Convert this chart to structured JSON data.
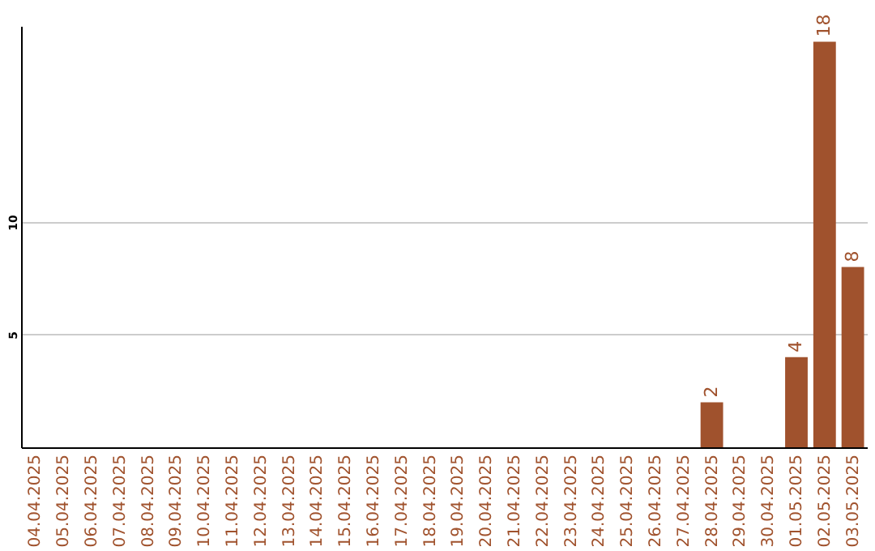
{
  "chart_data": {
    "type": "bar",
    "categories": [
      "04.04.2025",
      "05.04.2025",
      "06.04.2025",
      "07.04.2025",
      "08.04.2025",
      "09.04.2025",
      "10.04.2025",
      "11.04.2025",
      "12.04.2025",
      "13.04.2025",
      "14.04.2025",
      "15.04.2025",
      "16.04.2025",
      "17.04.2025",
      "18.04.2025",
      "19.04.2025",
      "20.04.2025",
      "21.04.2025",
      "22.04.2025",
      "23.04.2025",
      "24.04.2025",
      "25.04.2025",
      "26.04.2025",
      "27.04.2025",
      "28.04.2025",
      "29.04.2025",
      "30.04.2025",
      "01.05.2025",
      "02.05.2025",
      "03.05.2025"
    ],
    "values": [
      0,
      0,
      0,
      0,
      0,
      0,
      0,
      0,
      0,
      0,
      0,
      0,
      0,
      0,
      0,
      0,
      0,
      0,
      0,
      0,
      0,
      0,
      0,
      0,
      2,
      0,
      0,
      4,
      18,
      8
    ],
    "value_labels": [
      null,
      null,
      null,
      null,
      null,
      null,
      null,
      null,
      null,
      null,
      null,
      null,
      null,
      null,
      null,
      null,
      null,
      null,
      null,
      null,
      null,
      null,
      null,
      null,
      "2",
      null,
      null,
      "4",
      "18",
      "8"
    ],
    "color": "#a0522d",
    "ylim": [
      0,
      18.7
    ],
    "yticks": [
      5,
      10
    ],
    "grid": "y"
  }
}
